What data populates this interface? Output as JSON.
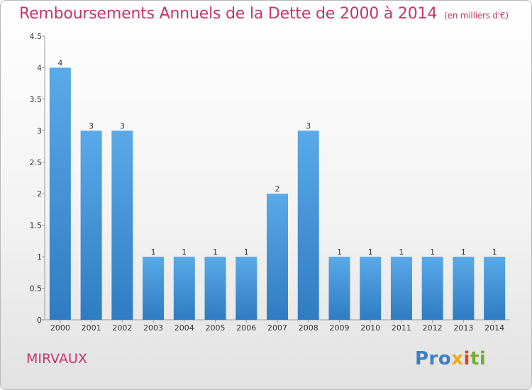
{
  "title": "Remboursements Annuels de la Dette de 2000 à 2014",
  "title_unit": "(en milliers d'€)",
  "commune": "MIRVAUX",
  "logo": {
    "parts": [
      "Pro",
      "x",
      "i",
      "ti"
    ]
  },
  "colors": {
    "title": "#c8336a",
    "bar_light": "#5aa9e8",
    "bar_dark": "#2f7cc2"
  },
  "chart_data": {
    "type": "bar",
    "categories": [
      "2000",
      "2001",
      "2002",
      "2003",
      "2004",
      "2005",
      "2006",
      "2007",
      "2008",
      "2009",
      "2010",
      "2011",
      "2012",
      "2013",
      "2014"
    ],
    "values": [
      4,
      3,
      3,
      1,
      1,
      1,
      1,
      2,
      3,
      1,
      1,
      1,
      1,
      1,
      1
    ],
    "data_labels": [
      "4",
      "3",
      "3",
      "1",
      "1",
      "1",
      "1",
      "2",
      "3",
      "1",
      "1",
      "1",
      "1",
      "1",
      "1"
    ],
    "ylim": [
      0,
      4.5
    ],
    "yticks": [
      0,
      0.5,
      1,
      1.5,
      2,
      2.5,
      3,
      3.5,
      4,
      4.5
    ],
    "ytick_labels": [
      "0",
      "0.5",
      "1",
      "1.5",
      "2",
      "2.5",
      "3",
      "3.5",
      "4",
      "4.5"
    ],
    "grid": false
  }
}
